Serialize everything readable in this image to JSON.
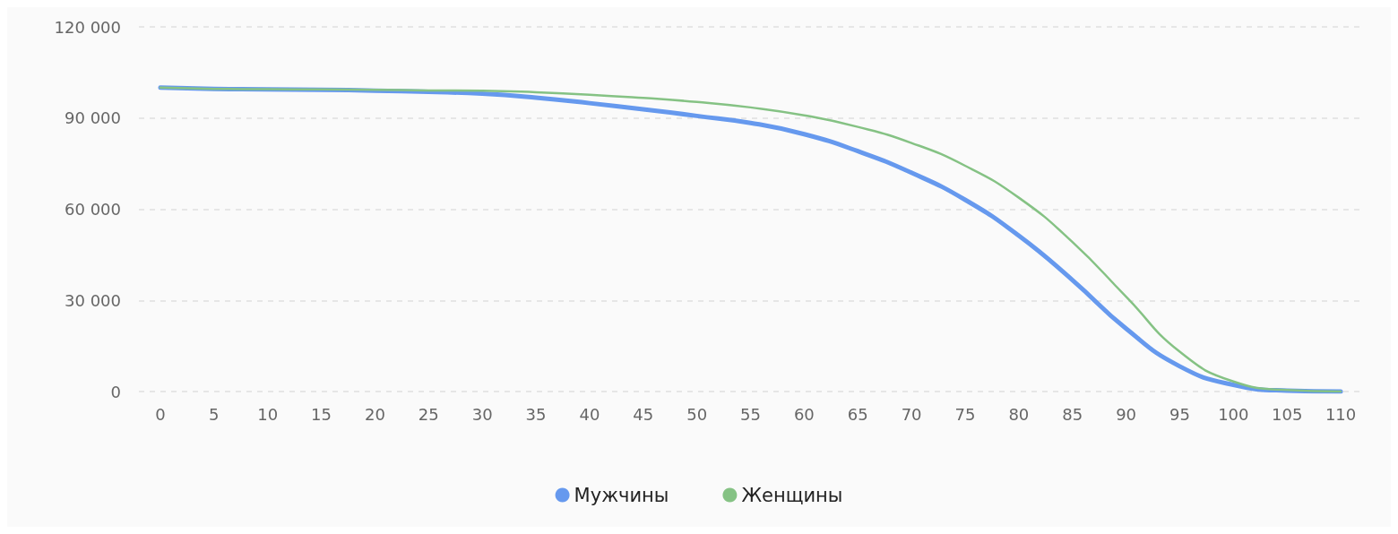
{
  "chart_data": {
    "type": "line",
    "x": [
      0,
      5,
      10,
      15,
      20,
      25,
      30,
      35,
      40,
      45,
      50,
      55,
      60,
      65,
      70,
      75,
      80,
      85,
      90,
      95,
      100,
      105,
      110
    ],
    "series": [
      {
        "name": "Мужчины",
        "color": "#6699ee",
        "values": [
          100000,
          99600,
          99400,
          99300,
          99000,
          98600,
          98000,
          96700,
          94900,
          92900,
          90700,
          88400,
          84700,
          79100,
          72000,
          63100,
          51300,
          36700,
          20700,
          8300,
          2200,
          300,
          0
        ]
      },
      {
        "name": "Женщины",
        "color": "#85c284",
        "values": [
          100000,
          99600,
          99500,
          99400,
          99300,
          99100,
          99000,
          98500,
          97700,
          96600,
          95300,
          93500,
          90900,
          87100,
          81800,
          74300,
          63800,
          49200,
          31200,
          13100,
          3300,
          500,
          0
        ]
      }
    ],
    "xlim": [
      -2,
      112
    ],
    "xticks": [
      0,
      5,
      10,
      15,
      20,
      25,
      30,
      35,
      40,
      45,
      50,
      55,
      60,
      65,
      70,
      75,
      80,
      85,
      90,
      95,
      100,
      105,
      110
    ],
    "ylim": [
      0,
      120000
    ],
    "yticks": [
      {
        "value": 0,
        "label": "0"
      },
      {
        "value": 30000,
        "label": "30 000"
      },
      {
        "value": 60000,
        "label": "60 000"
      },
      {
        "value": 90000,
        "label": "90 000"
      },
      {
        "value": 120000,
        "label": "120 000"
      }
    ],
    "grid": "y",
    "legend": "bottom",
    "marker": "none"
  }
}
